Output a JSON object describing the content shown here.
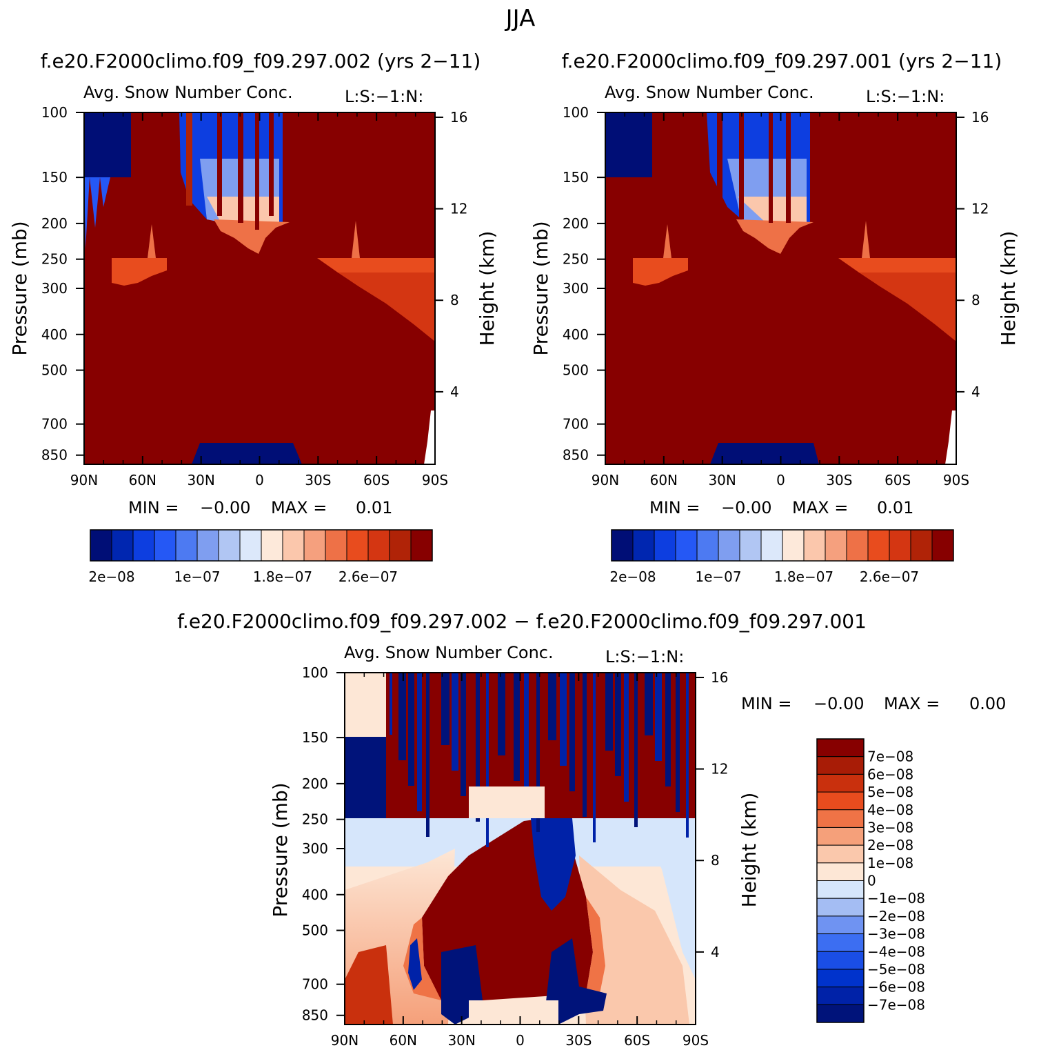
{
  "page_title": "JJA",
  "colors": {
    "left_scale": [
      "#000e76",
      "#0026b0",
      "#0d3ee0",
      "#2558f5",
      "#4d7af2",
      "#7f9ef0",
      "#b1c6f3",
      "#dce8fa",
      "#fde9da",
      "#fbc7ac",
      "#f5a07e",
      "#ee7147",
      "#e84c1e",
      "#d43612",
      "#b02307",
      "#870000"
    ],
    "diff_scale": [
      "#00137a",
      "#0022a8",
      "#0033cc",
      "#1a4ee6",
      "#3c6ef2",
      "#6f93f2",
      "#a4bdf3",
      "#d6e6fb",
      "#fde7d6",
      "#fac8ac",
      "#f5a07a",
      "#ef7346",
      "#e84c1e",
      "#c9300d",
      "#a81c06",
      "#870000"
    ],
    "frame": "#000000",
    "low_blue": "#000e76",
    "high_red": "#870000"
  },
  "panels": [
    {
      "id": "case2",
      "title": "f.e20.F2000climo.f09_f09.297.002 (yrs 2−11)",
      "subtitle": "Avg. Snow Number Conc.",
      "tag": "L:S:−1:N:",
      "min_label": "MIN =",
      "min_value": "−0.00",
      "max_label": "MAX =",
      "max_value": "0.01",
      "colorbar_labels": [
        "2e−08",
        "1e−07",
        "1.8e−07",
        "2.6e−07"
      ]
    },
    {
      "id": "case1",
      "title": "f.e20.F2000climo.f09_f09.297.001 (yrs 2−11)",
      "subtitle": "Avg. Snow Number Conc.",
      "tag": "L:S:−1:N:",
      "min_label": "MIN =",
      "min_value": "−0.00",
      "max_label": "MAX =",
      "max_value": "0.01",
      "colorbar_labels": [
        "2e−08",
        "1e−07",
        "1.8e−07",
        "2.6e−07"
      ]
    },
    {
      "id": "diff",
      "title": "f.e20.F2000climo.f09_f09.297.002 − f.e20.F2000climo.f09_f09.297.001",
      "subtitle": "Avg. Snow Number Conc.",
      "tag": "L:S:−1:N:",
      "min_label": "MIN =",
      "min_value": "−0.00",
      "max_label": "MAX =",
      "max_value": "0.00",
      "colorbar_labels": [
        "7e−08",
        "6e−08",
        "5e−08",
        "4e−08",
        "3e−08",
        "2e−08",
        "1e−08",
        "0",
        "−1e−08",
        "−2e−08",
        "−3e−08",
        "−4e−08",
        "−5e−08",
        "−6e−08",
        "−7e−08"
      ]
    }
  ],
  "chart_data": [
    {
      "type": "heatmap",
      "title": "f.e20.F2000climo.f09_f09.297.002 (yrs 2−11)",
      "subtitle": "Avg. Snow Number Conc.",
      "xlabel": "",
      "ylabel": "Pressure (mb)",
      "y2label": "Height (km)",
      "x_ticks": [
        "90N",
        "60N",
        "30N",
        "0",
        "30S",
        "60S",
        "90S"
      ],
      "y_ticks": [
        100,
        150,
        200,
        250,
        300,
        400,
        500,
        700,
        850
      ],
      "y2_ticks": [
        16,
        12,
        8,
        4
      ],
      "y_scale": "log",
      "ylim": [
        100,
        900
      ],
      "contour_levels": [
        "2e−08",
        "1e−07",
        "1.8e−07",
        "2.6e−07"
      ],
      "min": "−0.00",
      "max": "0.01"
    },
    {
      "type": "heatmap",
      "title": "f.e20.F2000climo.f09_f09.297.001 (yrs 2−11)",
      "subtitle": "Avg. Snow Number Conc.",
      "xlabel": "",
      "ylabel": "Pressure (mb)",
      "y2label": "Height (km)",
      "x_ticks": [
        "90N",
        "60N",
        "30N",
        "0",
        "30S",
        "60S",
        "90S"
      ],
      "y_ticks": [
        100,
        150,
        200,
        250,
        300,
        400,
        500,
        700,
        850
      ],
      "y2_ticks": [
        16,
        12,
        8,
        4
      ],
      "y_scale": "log",
      "ylim": [
        100,
        900
      ],
      "contour_levels": [
        "2e−08",
        "1e−07",
        "1.8e−07",
        "2.6e−07"
      ],
      "min": "−0.00",
      "max": "0.01"
    },
    {
      "type": "heatmap",
      "title": "f.e20.F2000climo.f09_f09.297.002 − f.e20.F2000climo.f09_f09.297.001",
      "subtitle": "Avg. Snow Number Conc.",
      "xlabel": "",
      "ylabel": "Pressure (mb)",
      "y2label": "Height (km)",
      "x_ticks": [
        "90N",
        "60N",
        "30N",
        "0",
        "30S",
        "60S",
        "90S"
      ],
      "y_ticks": [
        100,
        150,
        200,
        250,
        300,
        400,
        500,
        700,
        850
      ],
      "y2_ticks": [
        16,
        12,
        8,
        4
      ],
      "y_scale": "log",
      "ylim": [
        100,
        900
      ],
      "contour_levels": [
        "7e−08",
        "6e−08",
        "5e−08",
        "4e−08",
        "3e−08",
        "2e−08",
        "1e−08",
        "0",
        "−1e−08",
        "−2e−08",
        "−3e−08",
        "−4e−08",
        "−5e−08",
        "−6e−08",
        "−7e−08"
      ],
      "min": "−0.00",
      "max": "0.00"
    }
  ]
}
